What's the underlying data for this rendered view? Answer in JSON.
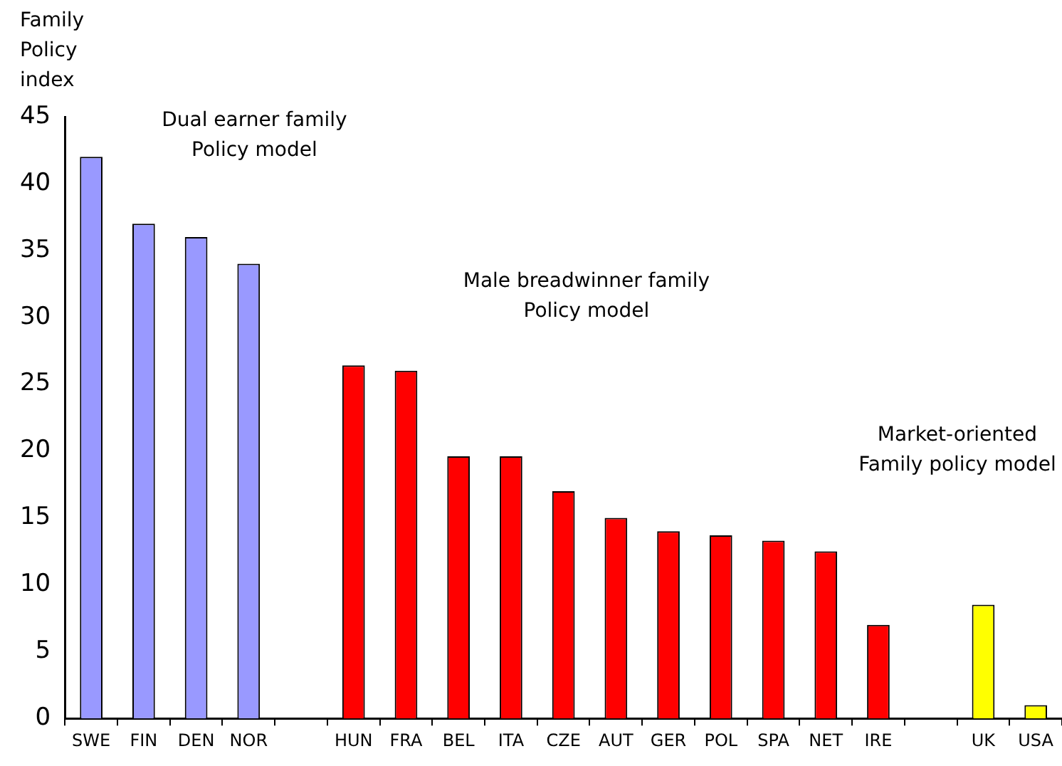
{
  "chart_data": {
    "type": "bar",
    "ylabel": "Family\nPolicy\nindex",
    "categories": [
      "SWE",
      "FIN",
      "DEN",
      "NOR",
      null,
      "HUN",
      "FRA",
      "BEL",
      "ITA",
      "CZE",
      "AUT",
      "GER",
      "POL",
      "SPA",
      "NET",
      "IRE",
      null,
      "UK",
      "USA"
    ],
    "values": [
      42,
      37,
      36,
      34,
      null,
      26.4,
      26,
      19.6,
      19.6,
      17,
      15,
      14,
      13.7,
      13.3,
      12.5,
      7,
      null,
      8.5,
      1
    ],
    "colors": [
      "#9999ff",
      "#9999ff",
      "#9999ff",
      "#9999ff",
      null,
      "#ff0000",
      "#ff0000",
      "#ff0000",
      "#ff0000",
      "#ff0000",
      "#ff0000",
      "#ff0000",
      "#ff0000",
      "#ff0000",
      "#ff0000",
      "#ff0000",
      null,
      "#ffff00",
      "#ffff00"
    ],
    "ylim": [
      0,
      45
    ],
    "yticks": [
      0,
      5,
      10,
      15,
      20,
      25,
      30,
      35,
      40,
      45
    ],
    "grid": false,
    "legend": false,
    "annotations": [
      "Dual earner family\nPolicy model",
      "Male breadwinner family\nPolicy model",
      "Market-oriented\nFamily policy model"
    ]
  }
}
